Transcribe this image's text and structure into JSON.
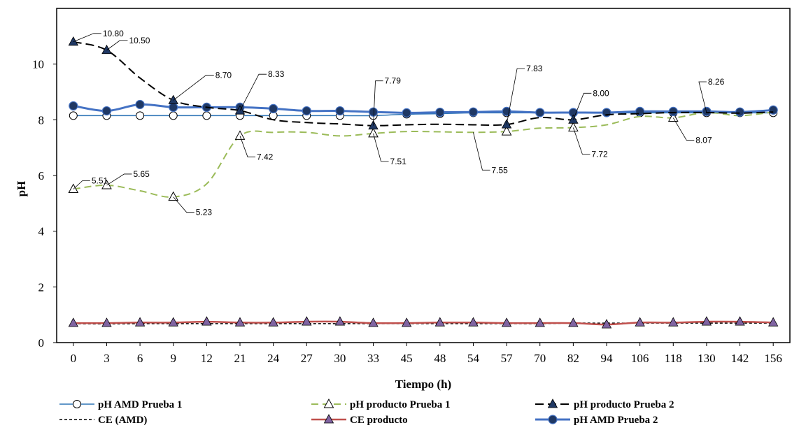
{
  "chart_data": {
    "type": "line",
    "xlabel": "Tiempo (h)",
    "ylabel": "pH",
    "categories": [
      "0",
      "3",
      "6",
      "9",
      "12",
      "21",
      "24",
      "27",
      "30",
      "33",
      "45",
      "48",
      "54",
      "57",
      "70",
      "82",
      "94",
      "106",
      "118",
      "130",
      "142",
      "156"
    ],
    "ylim": [
      0,
      12
    ],
    "yticks": [
      0,
      2,
      4,
      6,
      8,
      10
    ],
    "grid": false,
    "legend_position": "bottom",
    "series": [
      {
        "key": "amd1",
        "name": "pH AMD Prueba 1",
        "color": "#2E75B6",
        "dash": "",
        "width": 1.5,
        "marker": "circle-open",
        "marker_indices": [
          0,
          1,
          2,
          3,
          4,
          5,
          6,
          7,
          8,
          9,
          10,
          11,
          12,
          13,
          14,
          15,
          16,
          17,
          18,
          19,
          20,
          21
        ],
        "values": [
          8.15,
          8.15,
          8.15,
          8.15,
          8.15,
          8.15,
          8.15,
          8.15,
          8.15,
          8.15,
          8.2,
          8.22,
          8.25,
          8.25,
          8.25,
          8.25,
          8.25,
          8.25,
          8.25,
          8.25,
          8.25,
          8.25
        ]
      },
      {
        "key": "prod1",
        "name": "pH producto Prueba 1",
        "color": "#9BBB59",
        "dash": "10,6",
        "width": 2,
        "marker": "triangle-open",
        "marker_indices": [
          0,
          1,
          3,
          5,
          9,
          13,
          15,
          18
        ],
        "values": [
          5.51,
          5.65,
          5.45,
          5.23,
          5.7,
          7.42,
          7.55,
          7.55,
          7.42,
          7.51,
          7.58,
          7.57,
          7.55,
          7.58,
          7.7,
          7.72,
          7.82,
          8.12,
          8.07,
          8.26,
          8.15,
          8.28
        ]
      },
      {
        "key": "prod2",
        "name": "pH producto Prueba 2",
        "color": "#000000",
        "dash": "12,6",
        "width": 2,
        "marker": "triangle-filled",
        "marker_color": "#1F3864",
        "marker_indices": [
          0,
          1,
          3,
          5,
          9,
          13,
          15
        ],
        "values": [
          10.8,
          10.5,
          9.5,
          8.7,
          8.45,
          8.33,
          8.0,
          7.9,
          7.85,
          7.79,
          7.82,
          7.84,
          7.82,
          7.83,
          8.08,
          8.0,
          8.18,
          8.22,
          8.26,
          8.26,
          8.24,
          8.28
        ]
      },
      {
        "key": "ceamd",
        "name": "CE (AMD)",
        "color": "#000000",
        "dash": "4,3",
        "width": 1.5,
        "marker": "none",
        "marker_indices": [],
        "values": [
          0.68,
          0.67,
          0.68,
          0.68,
          0.68,
          0.68,
          0.68,
          0.68,
          0.68,
          0.68,
          0.68,
          0.68,
          0.68,
          0.68,
          0.68,
          0.7,
          0.7,
          0.7,
          0.7,
          0.7,
          0.7,
          0.7
        ]
      },
      {
        "key": "ceprod",
        "name": "CE producto",
        "color": "#C0504D",
        "dash": "",
        "width": 2.5,
        "marker": "triangle-filled",
        "marker_color": "#8064A2",
        "marker_indices": [
          0,
          1,
          2,
          3,
          4,
          5,
          6,
          7,
          8,
          9,
          10,
          11,
          12,
          13,
          14,
          15,
          16,
          17,
          18,
          19,
          20,
          21
        ],
        "values": [
          0.7,
          0.7,
          0.72,
          0.72,
          0.75,
          0.72,
          0.72,
          0.75,
          0.75,
          0.7,
          0.7,
          0.72,
          0.72,
          0.7,
          0.7,
          0.7,
          0.65,
          0.72,
          0.72,
          0.75,
          0.75,
          0.72
        ]
      },
      {
        "key": "amd2",
        "name": "pH AMD Prueba 2",
        "color": "#4472C4",
        "dash": "",
        "width": 3,
        "marker": "circle-filled",
        "marker_color": "#1F3864",
        "marker_indices": [
          0,
          1,
          2,
          3,
          4,
          5,
          6,
          7,
          8,
          9,
          10,
          11,
          12,
          13,
          14,
          15,
          16,
          17,
          18,
          19,
          20,
          21
        ],
        "values": [
          8.5,
          8.32,
          8.55,
          8.45,
          8.45,
          8.45,
          8.4,
          8.32,
          8.32,
          8.28,
          8.25,
          8.27,
          8.28,
          8.3,
          8.26,
          8.26,
          8.26,
          8.3,
          8.3,
          8.3,
          8.28,
          8.35
        ]
      }
    ],
    "annotations": [
      {
        "text": "10.80",
        "series": "prod2",
        "index": 0,
        "dx": 32,
        "dy": -12
      },
      {
        "text": "10.50",
        "series": "prod2",
        "index": 1,
        "dx": 22,
        "dy": -14
      },
      {
        "text": "8.70",
        "series": "prod2",
        "index": 3,
        "dx": 50,
        "dy": -36
      },
      {
        "text": "8.33",
        "series": "prod2",
        "index": 5,
        "dx": 30,
        "dy": -52
      },
      {
        "text": "7.79",
        "series": "prod2",
        "index": 9,
        "dx": 6,
        "dy": -64
      },
      {
        "text": "7.83",
        "series": "prod2",
        "index": 13,
        "dx": 18,
        "dy": -80
      },
      {
        "text": "8.00",
        "series": "prod2",
        "index": 15,
        "dx": 18,
        "dy": -38
      },
      {
        "text": "8.26",
        "series": "prod2",
        "index": 19,
        "dx": -8,
        "dy": -44
      },
      {
        "text": "5.51",
        "series": "prod1",
        "index": 0,
        "dx": 16,
        "dy": -12
      },
      {
        "text": "5.65",
        "series": "prod1",
        "index": 1,
        "dx": 28,
        "dy": -16
      },
      {
        "text": "5.23",
        "series": "prod1",
        "index": 3,
        "dx": 22,
        "dy": 22
      },
      {
        "text": "7.42",
        "series": "prod1",
        "index": 5,
        "dx": 14,
        "dy": 30
      },
      {
        "text": "7.51",
        "series": "prod1",
        "index": 9,
        "dx": 14,
        "dy": 40
      },
      {
        "text": "7.55",
        "series": "prod1",
        "index": 12,
        "dx": 16,
        "dy": 54
      },
      {
        "text": "7.72",
        "series": "prod1",
        "index": 15,
        "dx": 16,
        "dy": 38
      },
      {
        "text": "8.07",
        "series": "prod1",
        "index": 18,
        "dx": 22,
        "dy": 32
      }
    ]
  }
}
